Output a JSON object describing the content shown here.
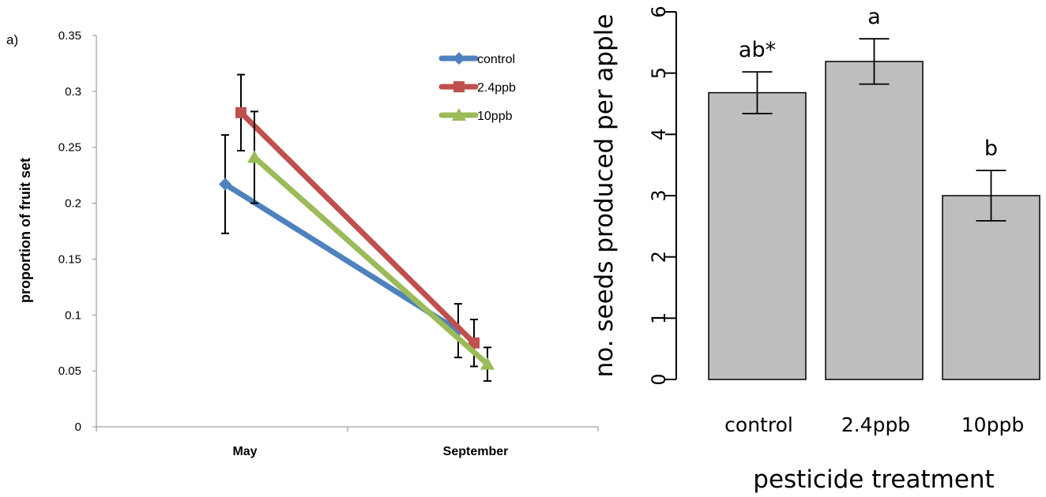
{
  "panel_label": "a)",
  "chart_data": [
    {
      "type": "line",
      "title": "",
      "xlabel": "",
      "ylabel": "proportion of fruit set",
      "categories": [
        "May",
        "September"
      ],
      "ylim": [
        0,
        0.35
      ],
      "yticks": [
        "0",
        "0.05",
        "0.1",
        "0.15",
        "0.2",
        "0.25",
        "0.3",
        "0.35"
      ],
      "legend_position": "top-right",
      "series": [
        {
          "name": "control",
          "color": "#4f81bd",
          "marker": "diamond",
          "values": [
            0.217,
            0.086
          ],
          "err_upper": [
            0.261,
            0.11
          ],
          "err_lower": [
            0.173,
            0.062
          ]
        },
        {
          "name": "2.4ppb",
          "color": "#c0504d",
          "marker": "square",
          "values": [
            0.281,
            0.075
          ],
          "err_upper": [
            0.315,
            0.096
          ],
          "err_lower": [
            0.247,
            0.054
          ]
        },
        {
          "name": "10ppb",
          "color": "#9bbb59",
          "marker": "triangle",
          "values": [
            0.241,
            0.056
          ],
          "err_upper": [
            0.282,
            0.071
          ],
          "err_lower": [
            0.2,
            0.041
          ]
        }
      ]
    },
    {
      "type": "bar",
      "title": "",
      "xlabel": "pesticide treatment",
      "ylabel": "no. seeds produced per apple",
      "categories": [
        "control",
        "2.4ppb",
        "10ppb"
      ],
      "values": [
        4.68,
        5.19,
        3.0
      ],
      "err_upper": [
        5.02,
        5.56,
        3.41
      ],
      "err_lower": [
        4.34,
        4.82,
        2.59
      ],
      "annotations": [
        "ab*",
        "a",
        "b"
      ],
      "ylim": [
        0,
        6
      ],
      "yticks": [
        "0",
        "1",
        "2",
        "3",
        "4",
        "5",
        "6"
      ],
      "bar_color": "#bebebe"
    }
  ]
}
